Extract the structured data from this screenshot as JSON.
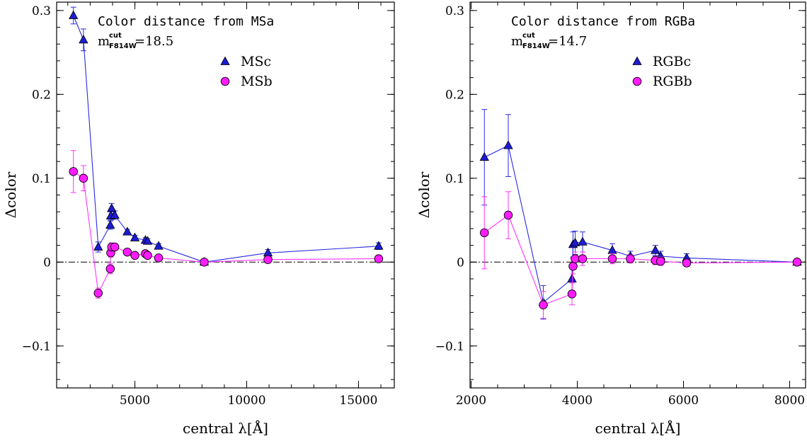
{
  "chart_data": [
    {
      "type": "scatter",
      "annotation": "Color distance from MSa",
      "cut_label": "m",
      "cut_sup": "cut",
      "cut_sub": "F814W",
      "cut_value": "=18.5",
      "xlabel": "central λ[Å]",
      "ylabel": "Δcolor",
      "xlim": [
        1500,
        16600
      ],
      "ylim": [
        -0.15,
        0.31
      ],
      "xticks_major": [
        5000,
        10000,
        15000
      ],
      "xtick_labels": [
        "5000",
        "10000",
        "15000"
      ],
      "xticks_minor_step": 1000,
      "yticks_major": [
        -0.1,
        0,
        0.1,
        0.2,
        0.3
      ],
      "ytick_labels": [
        "−0.1",
        "0",
        "0.1",
        "0.2",
        "0.3"
      ],
      "yticks_minor_step": 0.02,
      "zero_line": "dash-dot",
      "legend_position": "upper-right",
      "series": [
        {
          "name": "MSc",
          "marker": "triangle",
          "color": "#1c1cd4",
          "line_color": "#2a2ae6",
          "points": [
            {
              "x": 2250,
              "y": 0.294,
              "err": 0.01
            },
            {
              "x": 2700,
              "y": 0.265,
              "err": 0.013
            },
            {
              "x": 3360,
              "y": 0.018,
              "err": 0.006
            },
            {
              "x": 3900,
              "y": 0.044,
              "err": 0.005
            },
            {
              "x": 3920,
              "y": 0.055,
              "err": 0.005
            },
            {
              "x": 3960,
              "y": 0.064,
              "err": 0.006
            },
            {
              "x": 4100,
              "y": 0.056,
              "err": 0.005
            },
            {
              "x": 4660,
              "y": 0.036,
              "err": 0.003
            },
            {
              "x": 5000,
              "y": 0.029,
              "err": 0.003
            },
            {
              "x": 5470,
              "y": 0.026,
              "err": 0.003
            },
            {
              "x": 5570,
              "y": 0.025,
              "err": 0.003
            },
            {
              "x": 6060,
              "y": 0.019,
              "err": 0.003
            },
            {
              "x": 8100,
              "y": 0.0,
              "err": 0.002
            },
            {
              "x": 10950,
              "y": 0.011,
              "err": 0.004
            },
            {
              "x": 15900,
              "y": 0.019,
              "err": 0.004
            }
          ]
        },
        {
          "name": "MSb",
          "marker": "circle",
          "color": "#ff1cff",
          "line_color": "#ff33ff",
          "points": [
            {
              "x": 2250,
              "y": 0.108,
              "err": 0.025
            },
            {
              "x": 2700,
              "y": 0.1,
              "err": 0.015
            },
            {
              "x": 3360,
              "y": -0.037,
              "err": 0.006
            },
            {
              "x": 3900,
              "y": -0.008,
              "err": 0.006
            },
            {
              "x": 3920,
              "y": 0.011,
              "err": 0.005
            },
            {
              "x": 3960,
              "y": 0.018,
              "err": 0.005
            },
            {
              "x": 4100,
              "y": 0.018,
              "err": 0.004
            },
            {
              "x": 4660,
              "y": 0.012,
              "err": 0.003
            },
            {
              "x": 5000,
              "y": 0.008,
              "err": 0.003
            },
            {
              "x": 5470,
              "y": 0.01,
              "err": 0.003
            },
            {
              "x": 5570,
              "y": 0.008,
              "err": 0.003
            },
            {
              "x": 6060,
              "y": 0.005,
              "err": 0.003
            },
            {
              "x": 8100,
              "y": 0.0,
              "err": 0.002
            },
            {
              "x": 10950,
              "y": 0.003,
              "err": 0.003
            },
            {
              "x": 15900,
              "y": 0.004,
              "err": 0.003
            }
          ]
        }
      ]
    },
    {
      "type": "scatter",
      "annotation": "Color distance from RGBa",
      "cut_label": "m",
      "cut_sup": "cut",
      "cut_sub": "F814W",
      "cut_value": "=14.7",
      "xlabel": "central λ[Å]",
      "ylabel": "Δcolor",
      "xlim": [
        1980,
        8300
      ],
      "ylim": [
        -0.15,
        0.31
      ],
      "xticks_major": [
        2000,
        4000,
        6000,
        8000
      ],
      "xtick_labels": [
        "2000",
        "4000",
        "6000",
        "8000"
      ],
      "xticks_minor_step": 500,
      "yticks_major": [
        -0.1,
        0,
        0.1,
        0.2,
        0.3
      ],
      "ytick_labels": [
        "−0.1",
        "0",
        "0.1",
        "0.2",
        "0.3"
      ],
      "yticks_minor_step": 0.02,
      "zero_line": "dash-dot",
      "legend_position": "upper-right",
      "series": [
        {
          "name": "RGBc",
          "marker": "triangle",
          "color": "#1c1cd4",
          "line_color": "#2a2ae6",
          "points": [
            {
              "x": 2250,
              "y": 0.125,
              "err": 0.057
            },
            {
              "x": 2700,
              "y": 0.139,
              "err": 0.037
            },
            {
              "x": 3360,
              "y": -0.048,
              "err": 0.02
            },
            {
              "x": 3900,
              "y": -0.02,
              "err": 0.015
            },
            {
              "x": 3920,
              "y": 0.021,
              "err": 0.015
            },
            {
              "x": 3960,
              "y": 0.023,
              "err": 0.014
            },
            {
              "x": 4100,
              "y": 0.024,
              "err": 0.012
            },
            {
              "x": 4660,
              "y": 0.014,
              "err": 0.008
            },
            {
              "x": 5000,
              "y": 0.007,
              "err": 0.006
            },
            {
              "x": 5470,
              "y": 0.014,
              "err": 0.006
            },
            {
              "x": 5570,
              "y": 0.007,
              "err": 0.006
            },
            {
              "x": 6060,
              "y": 0.005,
              "err": 0.005
            },
            {
              "x": 8140,
              "y": 0.0,
              "err": 0.003
            }
          ]
        },
        {
          "name": "RGBb",
          "marker": "circle",
          "color": "#ff1cff",
          "line_color": "#ff33ff",
          "points": [
            {
              "x": 2250,
              "y": 0.035,
              "err": 0.043
            },
            {
              "x": 2700,
              "y": 0.056,
              "err": 0.028
            },
            {
              "x": 3360,
              "y": -0.051,
              "err": 0.016
            },
            {
              "x": 3900,
              "y": -0.038,
              "err": 0.013
            },
            {
              "x": 3920,
              "y": -0.005,
              "err": 0.009
            },
            {
              "x": 3960,
              "y": 0.004,
              "err": 0.008
            },
            {
              "x": 4100,
              "y": 0.004,
              "err": 0.008
            },
            {
              "x": 4660,
              "y": 0.004,
              "err": 0.006
            },
            {
              "x": 5000,
              "y": 0.004,
              "err": 0.005
            },
            {
              "x": 5470,
              "y": 0.002,
              "err": 0.005
            },
            {
              "x": 5570,
              "y": 0.001,
              "err": 0.005
            },
            {
              "x": 6060,
              "y": -0.001,
              "err": 0.004
            },
            {
              "x": 8140,
              "y": 0.0,
              "err": 0.003
            }
          ]
        }
      ]
    }
  ]
}
